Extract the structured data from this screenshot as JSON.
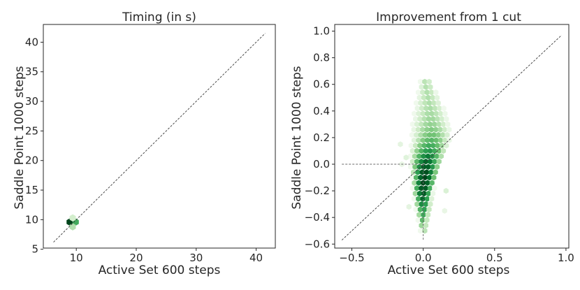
{
  "chart_data": [
    {
      "type": "hexbin",
      "title": "Timing (in s)",
      "xlabel": "Active Set 600 steps",
      "ylabel": "Saddle Point 1000 steps",
      "xlim": [
        4.5,
        43.2
      ],
      "ylim": [
        5.2,
        43.0
      ],
      "xticks": [
        10,
        20,
        30,
        40
      ],
      "yticks": [
        5,
        10,
        15,
        20,
        25,
        30,
        35,
        40
      ],
      "xtick_labels": [
        "10",
        "20",
        "30",
        "40"
      ],
      "ytick_labels": [
        "5",
        "10",
        "15",
        "20",
        "25",
        "30",
        "35",
        "40"
      ],
      "reference_line": {
        "from": [
          6.2,
          6.2
        ],
        "to": [
          41.5,
          41.5
        ],
        "style": "dashed"
      },
      "colormap": [
        "#f7fcf5",
        "#c7e9c0",
        "#74c476",
        "#31a354",
        "#006d2c",
        "#00441b"
      ],
      "hexbins": [
        {
          "x": 8.9,
          "y": 9.6,
          "density": 1.0
        },
        {
          "x": 9.9,
          "y": 9.6,
          "density": 0.55
        },
        {
          "x": 9.4,
          "y": 8.8,
          "density": 0.25
        },
        {
          "x": 9.4,
          "y": 10.3,
          "density": 0.15
        }
      ],
      "grid": false
    },
    {
      "type": "hexbin",
      "title": "Improvement from 1 cut",
      "xlabel": "Active Set 600 steps",
      "ylabel": "Saddle Point 1000 steps",
      "xlim": [
        -0.62,
        1.02
      ],
      "ylim": [
        -0.63,
        1.05
      ],
      "xticks": [
        -0.5,
        0.0,
        0.5,
        1.0
      ],
      "yticks": [
        -0.6,
        -0.4,
        -0.2,
        0.0,
        0.2,
        0.4,
        0.6,
        0.8,
        1.0
      ],
      "xtick_labels": [
        "−0.5",
        "0.0",
        "0.5",
        "1.0"
      ],
      "ytick_labels": [
        "−0.6",
        "−0.4",
        "−0.2",
        "0.0",
        "0.2",
        "0.4",
        "0.6",
        "0.8",
        "1.0"
      ],
      "reference_line": {
        "from": [
          -0.57,
          -0.57
        ],
        "to": [
          0.97,
          0.97
        ],
        "style": "dashed"
      },
      "zero_lines": {
        "horizontal_y": 0.0,
        "horizontal_x_from": -0.57,
        "vertical_x": 0.0,
        "vertical_y_to": -0.57,
        "style": "dashed"
      },
      "colormap": [
        "#f7fcf5",
        "#c7e9c0",
        "#74c476",
        "#31a354",
        "#006d2c",
        "#00441b"
      ],
      "distribution": {
        "y_from": -0.5,
        "y_to": 0.62,
        "y_step": 0.04,
        "center_x": [
          [
            -0.5,
            0.0
          ],
          [
            -0.2,
            0.0
          ],
          [
            0.0,
            0.02
          ],
          [
            0.2,
            0.06
          ],
          [
            0.4,
            0.05
          ],
          [
            0.62,
            0.02
          ]
        ],
        "half_width": [
          [
            -0.5,
            0.02
          ],
          [
            -0.35,
            0.05
          ],
          [
            -0.1,
            0.09
          ],
          [
            0.1,
            0.13
          ],
          [
            0.25,
            0.14
          ],
          [
            0.4,
            0.11
          ],
          [
            0.62,
            0.04
          ]
        ],
        "peak_y": -0.12,
        "sparse_clusters": [
          {
            "x": -0.16,
            "y": 0.15,
            "density": 0.08
          },
          {
            "x": -0.12,
            "y": 0.05,
            "density": 0.1
          },
          {
            "x": -0.15,
            "y": 0.0,
            "density": 0.06
          },
          {
            "x": 0.16,
            "y": -0.2,
            "density": 0.12
          },
          {
            "x": -0.1,
            "y": -0.32,
            "density": 0.08
          },
          {
            "x": 0.15,
            "y": -0.35,
            "density": 0.06
          }
        ]
      },
      "grid": false
    }
  ]
}
